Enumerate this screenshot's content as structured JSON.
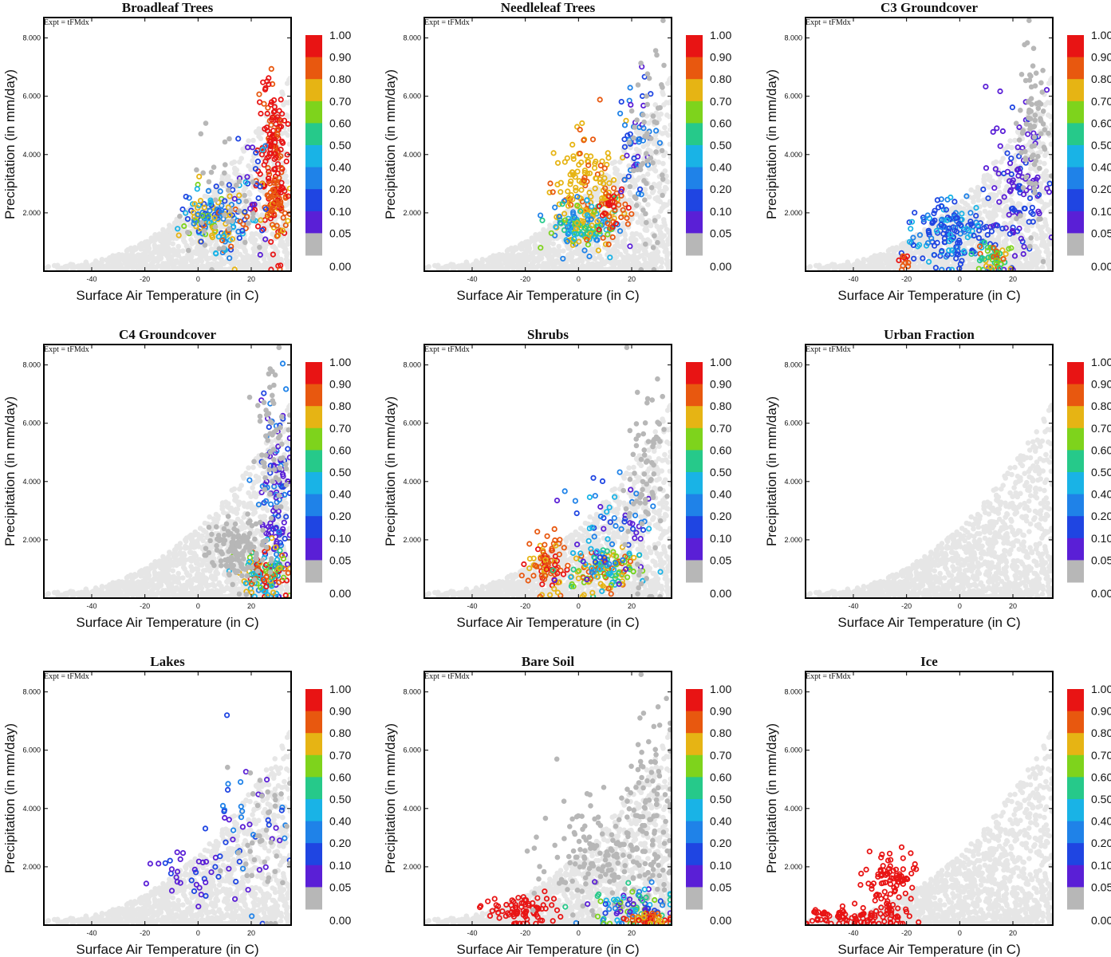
{
  "figure": {
    "expt_label": "Expt = tFMdx",
    "xlabel": "Surface Air Temperature (in C)",
    "ylabel": "Precipitation (in mm/day)",
    "xlim": [
      -58,
      35
    ],
    "ylim": [
      0,
      8.7
    ],
    "xticks": [
      -40,
      -20,
      0,
      20
    ],
    "xtick_labels": [
      "-40",
      "-20",
      "0",
      "20"
    ],
    "yticks": [
      2,
      4,
      6,
      8
    ],
    "ytick_labels": [
      "2.000",
      "4.000",
      "6.000",
      "8.000"
    ]
  },
  "colorbar": {
    "labels": [
      "1.00",
      "0.90",
      "0.80",
      "0.70",
      "0.60",
      "0.50",
      "0.40",
      "0.20",
      "0.10",
      "0.05",
      "0.00"
    ],
    "colors": [
      "#e81414",
      "#e8580f",
      "#e6b414",
      "#7ed31c",
      "#26c98a",
      "#19b3e6",
      "#1f82e8",
      "#1f45e2",
      "#5a1fd6",
      "#b7b7b7"
    ]
  },
  "background_cloud_color": "#e6e6e6",
  "chart_data": [
    {
      "type": "scatter",
      "title": "Broadleaf Trees",
      "key": "broadleaf"
    },
    {
      "type": "scatter",
      "title": "Needleleaf Trees",
      "key": "needleleaf"
    },
    {
      "type": "scatter",
      "title": "C3 Groundcover",
      "key": "c3"
    },
    {
      "type": "scatter",
      "title": "C4 Groundcover",
      "key": "c4"
    },
    {
      "type": "scatter",
      "title": "Shrubs",
      "key": "shrubs"
    },
    {
      "type": "scatter",
      "title": "Urban Fraction",
      "key": "urban"
    },
    {
      "type": "scatter",
      "title": "Lakes",
      "key": "lakes"
    },
    {
      "type": "scatter",
      "title": "Bare Soil",
      "key": "baresoil"
    },
    {
      "type": "scatter",
      "title": "Ice",
      "key": "ice"
    }
  ]
}
